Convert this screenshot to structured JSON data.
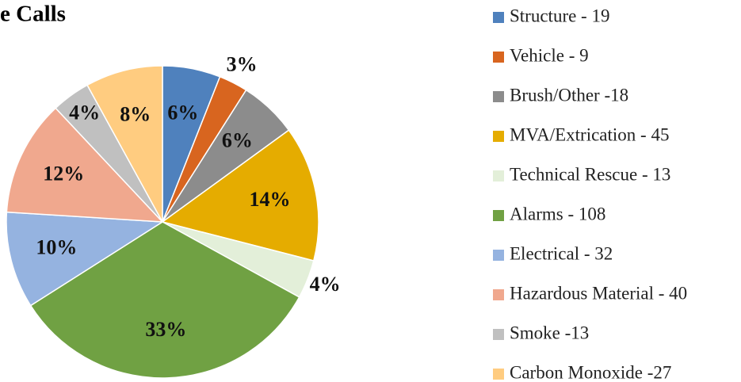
{
  "chart_data": {
    "type": "pie",
    "title": "e Calls",
    "categories": [
      "Structure - 19",
      "Vehicle - 9",
      "Brush/Other -18",
      "MVA/Extrication - 45",
      "Technical Rescue - 13",
      "Alarms - 108",
      "Electrical - 32",
      "Hazardous Material - 40",
      "Smoke -13",
      "Carbon Monoxide -27"
    ],
    "values": [
      6,
      3,
      6,
      14,
      4,
      33,
      10,
      12,
      4,
      8
    ],
    "value_labels": [
      "6%",
      "3%",
      "6%",
      "14%",
      "4%",
      "33%",
      "10%",
      "12%",
      "4%",
      "8%"
    ],
    "colors": [
      "#4f81bd",
      "#d8651f",
      "#8c8c8c",
      "#e5ac00",
      "#e3efd9",
      "#70a143",
      "#95b3e0",
      "#f0a88e",
      "#c0c0c0",
      "#ffcc80"
    ]
  }
}
